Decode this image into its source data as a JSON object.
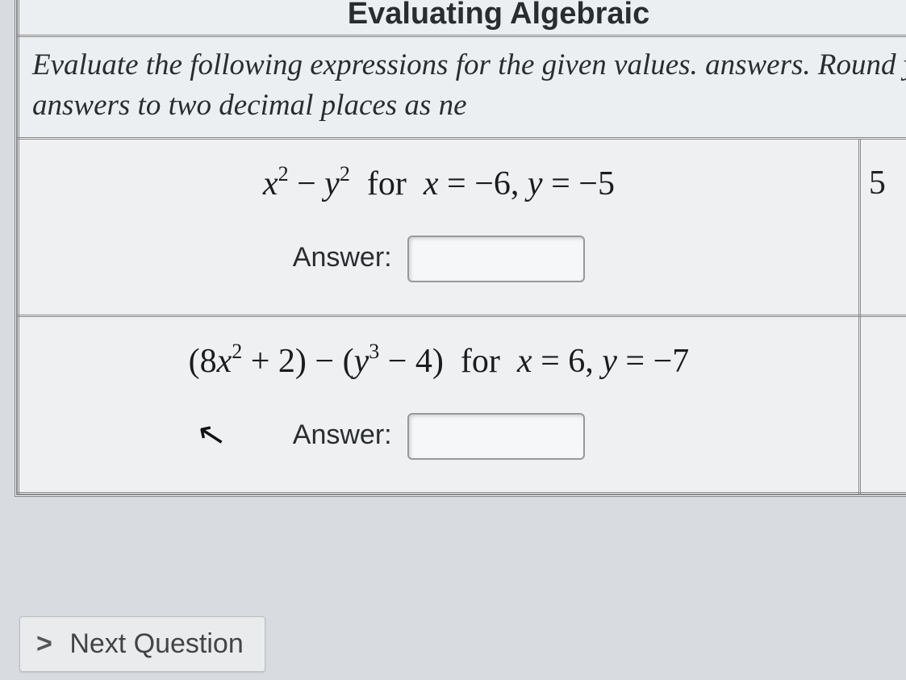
{
  "header": {
    "title": "Evaluating Algebraic"
  },
  "instructions": {
    "line1": "Evaluate the following expressions for the given values.",
    "line2_prefix": "answers. Round your answers to two decimal places as ne"
  },
  "problems": [
    {
      "expression_html": "<span class='var'>x</span><sup>2</sup> &minus; <span class='var'>y</span><sup>2</sup>&nbsp; for &nbsp;<span class='var'>x</span> = &minus;6, <span class='var'>y</span> = &minus;5",
      "answer_label": "Answer:",
      "side_text": "5"
    },
    {
      "expression_html": "(8<span class='var'>x</span><sup>2</sup> + 2) &minus; (<span class='var'>y</span><sup>3</sup> &minus; 4)&nbsp; for &nbsp;<span class='var'>x</span> = 6, <span class='var'>y</span> = &minus;7",
      "answer_label": "Answer:",
      "side_text": ""
    }
  ],
  "nav": {
    "next_label": "Next Question",
    "chevron": ">"
  },
  "style": {
    "bg": "#d8dce0",
    "cell_bg": "#eef0f2",
    "border": "#888",
    "text": "#2a2d30",
    "input_border": "#999",
    "input_bg": "#f6f7f8",
    "title_fontsize": 38,
    "instr_fontsize": 37,
    "expr_fontsize": 42,
    "ans_fontsize": 34,
    "btn_fontsize": 34
  }
}
